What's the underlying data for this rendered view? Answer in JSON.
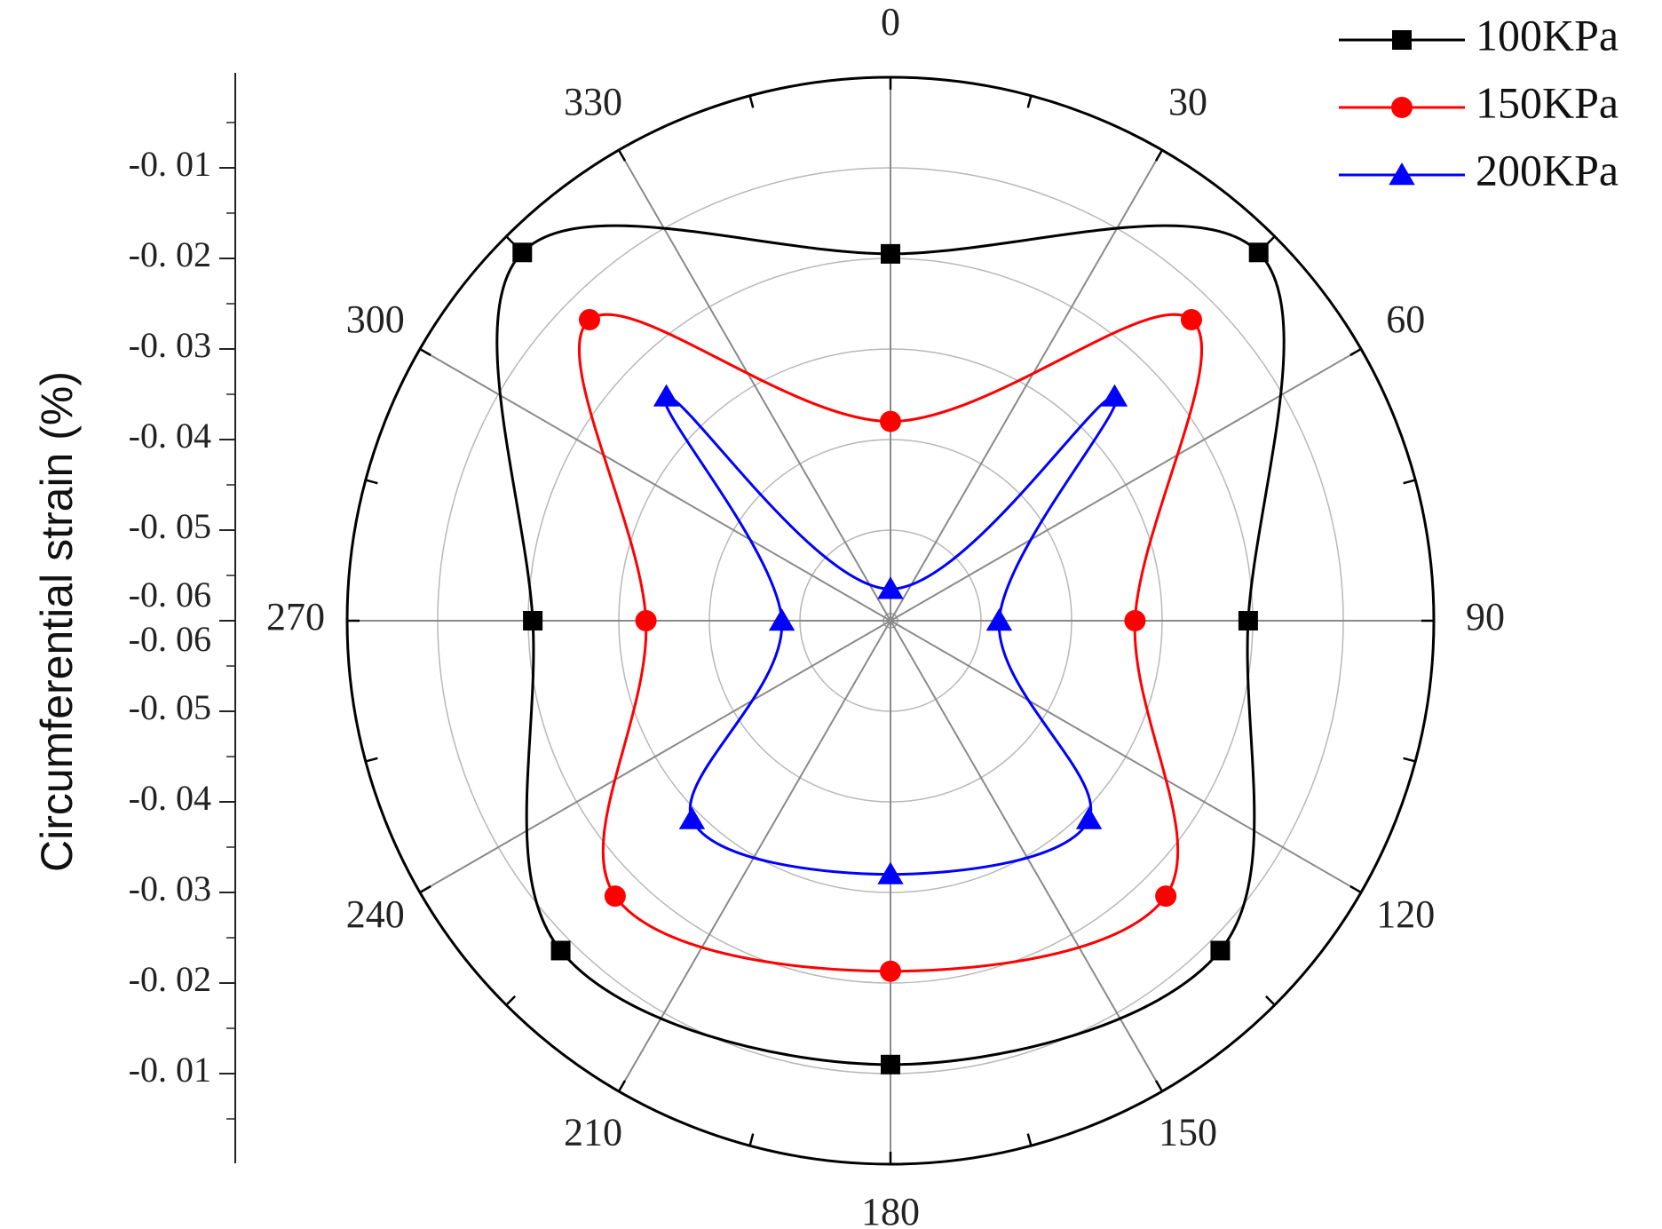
{
  "chart_data": {
    "type": "polar-line",
    "title": "",
    "ylabel": "Circumferential strain (%)",
    "theta_direction": "clockwise",
    "theta_zero": "top",
    "theta_ticks": [
      0,
      30,
      60,
      90,
      120,
      150,
      180,
      210,
      240,
      270,
      300,
      330
    ],
    "theta_tick_labels": [
      "0",
      "30",
      "60",
      "90",
      "120",
      "150",
      "180",
      "210",
      "240",
      "270",
      "300",
      "330"
    ],
    "radial_axis": {
      "min": -0.06,
      "max": -0.0,
      "ticks": [
        -0.06,
        -0.05,
        -0.04,
        -0.03,
        -0.02,
        -0.01
      ],
      "upper_tick_labels": [
        "-0. 01",
        "-0. 02",
        "-0. 03",
        "-0. 04",
        "-0. 05",
        "-0. 06"
      ],
      "lower_tick_labels": [
        "-0. 06",
        "-0. 05",
        "-0. 04",
        "-0. 03",
        "-0. 02",
        "-0. 01"
      ]
    },
    "grid": true,
    "legend_position": "top-right",
    "series": [
      {
        "name": "100KPa",
        "color": "#000000",
        "marker": "square",
        "theta": [
          0,
          45,
          90,
          135,
          180,
          225,
          270,
          315
        ],
        "values": [
          -0.0195,
          -0.0025,
          -0.0205,
          -0.0085,
          -0.011,
          -0.0085,
          -0.0205,
          -0.0025
        ]
      },
      {
        "name": "150KPa",
        "color": "#ff0000",
        "marker": "circle",
        "theta": [
          0,
          45,
          90,
          135,
          180,
          225,
          270,
          315
        ],
        "values": [
          -0.038,
          -0.013,
          -0.033,
          -0.017,
          -0.0213,
          -0.017,
          -0.033,
          -0.013
        ]
      },
      {
        "name": "200KPa",
        "color": "#0000ff",
        "marker": "triangle",
        "theta": [
          0,
          45,
          90,
          135,
          180,
          225,
          270,
          315
        ],
        "values": [
          -0.0565,
          -0.025,
          -0.048,
          -0.029,
          -0.032,
          -0.029,
          -0.048,
          -0.025
        ]
      }
    ]
  }
}
